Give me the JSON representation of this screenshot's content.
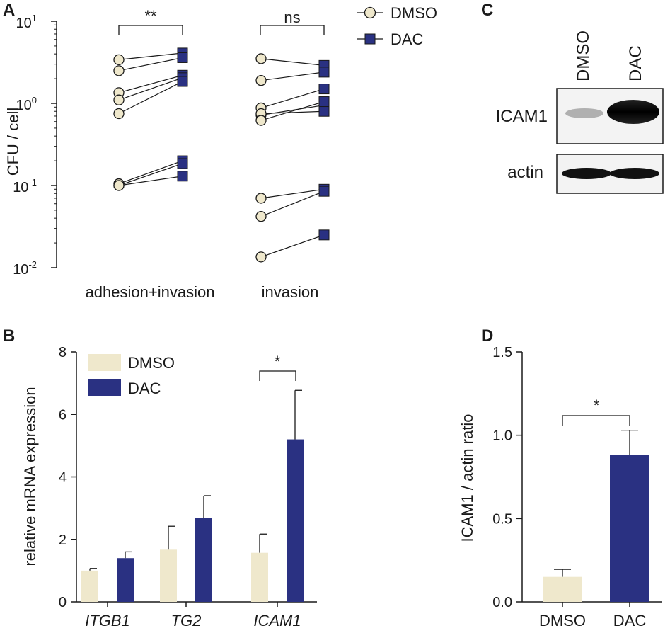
{
  "colors": {
    "dmso": "#efe8cc",
    "dac": "#2a3182",
    "axis": "#1a1a1a"
  },
  "panels": {
    "A": {
      "letter": "A"
    },
    "B": {
      "letter": "B"
    },
    "C": {
      "letter": "C"
    },
    "D": {
      "letter": "D"
    }
  },
  "western_blot": {
    "columns": [
      "DMSO",
      "DAC"
    ],
    "rows": [
      "ICAM1",
      "actin"
    ]
  },
  "chart_data": [
    {
      "id": "A",
      "type": "scatter",
      "yscale": "log",
      "ylabel": "CFU / cell",
      "ylim": [
        0.01,
        10
      ],
      "yticks": [
        {
          "value": 0.01,
          "base": "10",
          "exp": "-2"
        },
        {
          "value": 0.1,
          "base": "10",
          "exp": "-1"
        },
        {
          "value": 1,
          "base": "10",
          "exp": "0"
        },
        {
          "value": 10,
          "base": "10",
          "exp": "1"
        }
      ],
      "categories": [
        "adhesion+invasion",
        "invasion"
      ],
      "legend": [
        "DMSO",
        "DAC"
      ],
      "significance": [
        "**",
        "ns"
      ],
      "pairs": [
        [
          [
            3.4,
            4.1
          ],
          [
            2.5,
            3.6
          ],
          [
            1.35,
            2.2
          ],
          [
            1.1,
            2.05
          ],
          [
            0.75,
            1.85
          ],
          [
            0.105,
            0.2
          ],
          [
            0.1,
            0.185
          ],
          [
            0.1,
            0.13
          ]
        ],
        [
          [
            3.5,
            2.9
          ],
          [
            1.9,
            2.4
          ],
          [
            0.88,
            1.5
          ],
          [
            0.72,
            0.95
          ],
          [
            0.75,
            0.8
          ],
          [
            0.62,
            1.05
          ],
          [
            0.07,
            0.09
          ],
          [
            0.042,
            0.085
          ],
          [
            0.0135,
            0.025
          ]
        ]
      ]
    },
    {
      "id": "B",
      "type": "bar",
      "ylabel": "relative mRNA expression",
      "ylim": [
        0,
        8
      ],
      "yticks": [
        "0",
        "2",
        "4",
        "6",
        "8"
      ],
      "categories": [
        "ITGB1",
        "TG2",
        "ICAM1"
      ],
      "series": [
        {
          "name": "DMSO",
          "values": [
            1.0,
            1.67,
            1.57
          ],
          "errors": [
            0.07,
            0.75,
            0.6
          ]
        },
        {
          "name": "DAC",
          "values": [
            1.4,
            2.68,
            5.2
          ],
          "errors": [
            0.2,
            0.72,
            1.57
          ]
        }
      ],
      "significance": [
        "*"
      ]
    },
    {
      "id": "D",
      "type": "bar",
      "ylabel": "ICAM1 / actin ratio",
      "ylim": [
        0,
        1.5
      ],
      "yticks": [
        "0.0",
        "0.5",
        "1.0",
        "1.5"
      ],
      "categories": [
        "DMSO",
        "DAC"
      ],
      "values": [
        0.15,
        0.88
      ],
      "errors": [
        0.045,
        0.15
      ],
      "significance": [
        "*"
      ]
    }
  ]
}
